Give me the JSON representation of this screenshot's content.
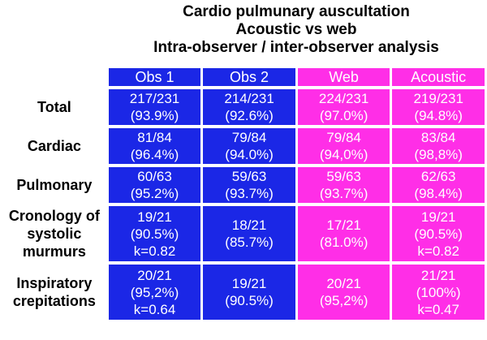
{
  "chart_data": {
    "type": "table",
    "title": [
      "Cardio pulmunary auscultation",
      "Acoustic vs web",
      "Intra-observer / inter-observer analysis"
    ],
    "columns": [
      "Obs 1",
      "Obs 2",
      "Web",
      "Acoustic"
    ],
    "column_colors": [
      "#1b27e6",
      "#1b27e6",
      "#ff2ee7",
      "#ff2ee7"
    ],
    "rows": [
      {
        "label": "Total",
        "cells": [
          {
            "frac": "217/231",
            "pct": "(93.9%)",
            "k": ""
          },
          {
            "frac": "214/231",
            "pct": "(92.6%)",
            "k": ""
          },
          {
            "frac": "224/231",
            "pct": "(97.0%)",
            "k": ""
          },
          {
            "frac": "219/231",
            "pct": "(94.8%)",
            "k": ""
          }
        ]
      },
      {
        "label": "Cardiac",
        "cells": [
          {
            "frac": "81/84",
            "pct": "(96.4%)",
            "k": ""
          },
          {
            "frac": "79/84",
            "pct": "(94.0%)",
            "k": ""
          },
          {
            "frac": "79/84",
            "pct": "(94,0%)",
            "k": ""
          },
          {
            "frac": "83/84",
            "pct": "(98,8%)",
            "k": ""
          }
        ]
      },
      {
        "label": "Pulmonary",
        "cells": [
          {
            "frac": "60/63",
            "pct": "(95.2%)",
            "k": ""
          },
          {
            "frac": "59/63",
            "pct": "(93.7%)",
            "k": ""
          },
          {
            "frac": "59/63",
            "pct": "(93.7%)",
            "k": ""
          },
          {
            "frac": "62/63",
            "pct": "(98.4%)",
            "k": ""
          }
        ]
      },
      {
        "label": [
          "Cronology of",
          "systolic",
          "murmurs"
        ],
        "cells": [
          {
            "frac": "19/21",
            "pct": "(90.5%)",
            "k": "k=0.82"
          },
          {
            "frac": "18/21",
            "pct": "(85.7%)",
            "k": ""
          },
          {
            "frac": "17/21",
            "pct": "(81.0%)",
            "k": ""
          },
          {
            "frac": "19/21",
            "pct": "(90.5%)",
            "k": "k=0.82"
          }
        ]
      },
      {
        "label": [
          "Inspiratory",
          "crepitations"
        ],
        "cells": [
          {
            "frac": "20/21",
            "pct": "(95,2%)",
            "k": "k=0.64"
          },
          {
            "frac": "19/21",
            "pct": "(90.5%)",
            "k": ""
          },
          {
            "frac": "20/21",
            "pct": "(95,2%)",
            "k": ""
          },
          {
            "frac": "21/21",
            "pct": "(100%)",
            "k": "k=0.47"
          }
        ]
      }
    ]
  }
}
